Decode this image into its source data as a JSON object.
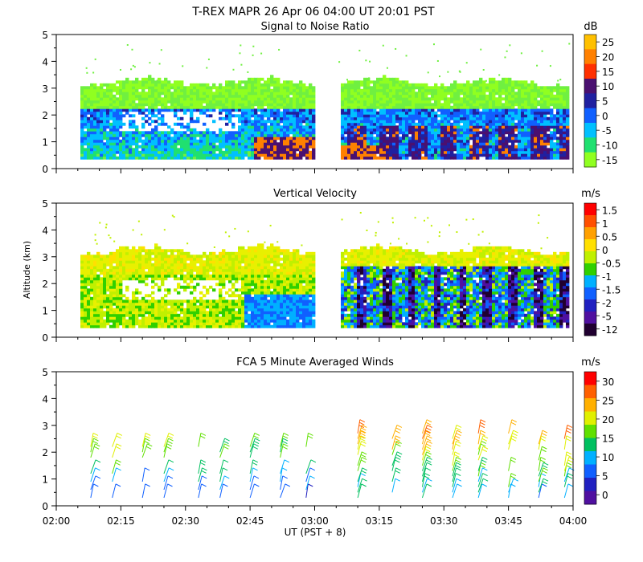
{
  "header": {
    "title": "T-REX  MAPR 26 Apr 06  04:00 UT  20:01  PST"
  },
  "chart_data": [
    {
      "type": "heatmap",
      "title": "Signal to Noise Ratio",
      "units": "dB",
      "ylim": [
        0,
        5
      ],
      "yticks": [
        "0",
        "1",
        "2",
        "3",
        "4",
        "5"
      ],
      "colorbar": {
        "ticks": [
          "25",
          "20",
          "15",
          "10",
          "5",
          "0",
          "-5",
          "-10",
          "-15"
        ],
        "colors": [
          "#ffc000",
          "#ff8000",
          "#ff3000",
          "#4a1070",
          "#2020a0",
          "#1060ff",
          "#00c0ff",
          "#20e070",
          "#90ff20"
        ]
      },
      "data_gap_ut": [
        "03:00",
        "03:05"
      ]
    },
    {
      "type": "heatmap",
      "title": "Vertical Velocity",
      "units": "m/s",
      "ylabel": "Altitude (km)",
      "ylim": [
        0,
        5
      ],
      "yticks": [
        "0",
        "1",
        "2",
        "3",
        "4",
        "5"
      ],
      "colorbar": {
        "ticks": [
          "1.5",
          "1",
          "0.5",
          "0",
          "-0.5",
          "-1",
          "-1.5",
          "-2",
          "-5",
          "-12"
        ],
        "colors": [
          "#ff0000",
          "#ff5000",
          "#ffa000",
          "#ffe000",
          "#c0f000",
          "#30d000",
          "#00b0ff",
          "#1060ff",
          "#2020c0",
          "#5010a0",
          "#200030"
        ]
      },
      "data_gap_ut": [
        "03:00",
        "03:05"
      ]
    },
    {
      "type": "scatter",
      "title": "FCA 5 Minute Averaged Winds",
      "units": "m/s",
      "xlabel": "UT  (PST + 8)",
      "ylim": [
        0,
        5
      ],
      "yticks": [
        "0",
        "1",
        "2",
        "3",
        "4",
        "5"
      ],
      "xticks": [
        "02:00",
        "02:15",
        "02:30",
        "02:45",
        "03:00",
        "03:15",
        "03:30",
        "03:45",
        "04:00"
      ],
      "colorbar": {
        "ticks": [
          "30",
          "25",
          "20",
          "15",
          "10",
          "5",
          "0"
        ],
        "colors": [
          "#ff0000",
          "#ff6000",
          "#ffb000",
          "#e0f000",
          "#60e000",
          "#00c060",
          "#00b0ff",
          "#1060ff",
          "#2020c0",
          "#5010a0"
        ]
      },
      "barb_times_ut": [
        "02:08",
        "02:13",
        "02:20",
        "02:25",
        "02:33",
        "02:38",
        "02:45",
        "02:52",
        "02:58",
        "03:10",
        "03:18",
        "03:25",
        "03:32",
        "03:38",
        "03:45",
        "03:52",
        "03:58"
      ]
    }
  ]
}
